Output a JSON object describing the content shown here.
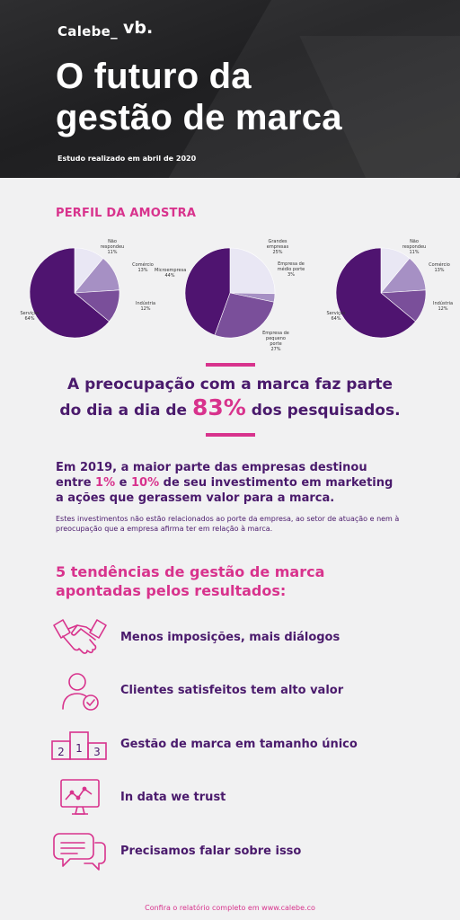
{
  "header": {
    "logo_calebe": "Calebe_",
    "logo_vb": "vb.",
    "title_line1": "O futuro da",
    "title_line2": "gestão de marca",
    "subtitle": "Estudo realizado em abril de 2020"
  },
  "colors": {
    "pink": "#d8338d",
    "purple_dark": "#4a1a6c",
    "pie_dark": "#4f1470",
    "pie_mid": "#7a4f9a",
    "pie_light": "#a690c4",
    "pie_pale": "#e9e7f4"
  },
  "profile": {
    "section_title": "PERFIL DA AMOSTRA"
  },
  "chart_data": [
    {
      "type": "pie",
      "slices": [
        {
          "label": "Não respondeu",
          "value": 11,
          "display": "11%"
        },
        {
          "label": "Comércio",
          "value": 13,
          "display": "13%"
        },
        {
          "label": "Indústria",
          "value": 12,
          "display": "12%"
        },
        {
          "label": "Serviços",
          "value": 64,
          "display": "64%"
        }
      ]
    },
    {
      "type": "pie",
      "slices": [
        {
          "label": "Grandes empresas",
          "value": 25,
          "display": "25%"
        },
        {
          "label": "Empresa de médio porte",
          "value": 3,
          "display": "3%"
        },
        {
          "label": "Empresa de pequeno porte",
          "value": 27,
          "display": "27%"
        },
        {
          "label": "Microempresa",
          "value": 44,
          "display": "44%"
        }
      ]
    },
    {
      "type": "pie",
      "slices": [
        {
          "label": "Não respondeu",
          "value": 11,
          "display": "11%"
        },
        {
          "label": "Comércio",
          "value": 13,
          "display": "13%"
        },
        {
          "label": "Indústria",
          "value": 12,
          "display": "12%"
        },
        {
          "label": "Serviços",
          "value": 64,
          "display": "64%"
        }
      ]
    }
  ],
  "headline": {
    "line1": "A preocupação com a marca faz parte",
    "line2_before": "do dia a dia de ",
    "line2_value": "83%",
    "line2_after": " dos pesquisados."
  },
  "stat": {
    "p1": "Em 2019, a maior parte das empresas destinou",
    "p2_before": "entre ",
    "p2_v1": "1%",
    "p2_mid": " e ",
    "p2_v2": "10%",
    "p2_after": " de seu investimento em marketing",
    "p3": "a ações que gerassem valor para a marca."
  },
  "note": "Estes investimentos não estão relacionados ao porte da empresa, ao setor de atuação e nem à preocupação que a empresa afirma ter em relação à marca.",
  "trends": {
    "title_line1": "5 tendências de gestão de marca",
    "title_line2": "apontadas pelos resultados:",
    "items": [
      {
        "label": "Menos imposições, mais diálogos",
        "icon": "handshake-icon"
      },
      {
        "label": "Clientes satisfeitos tem alto valor",
        "icon": "satisfied-user-icon"
      },
      {
        "label": "Gestão de marca em tamanho único",
        "icon": "podium-icon"
      },
      {
        "label": "In data we trust",
        "icon": "monitor-chart-icon"
      },
      {
        "label": "Precisamos falar sobre isso",
        "icon": "speech-bubbles-icon"
      }
    ],
    "podium": {
      "left": "2",
      "center": "1",
      "right": "3"
    }
  },
  "footer": "Confira o relatório completo em www.calebe.co"
}
